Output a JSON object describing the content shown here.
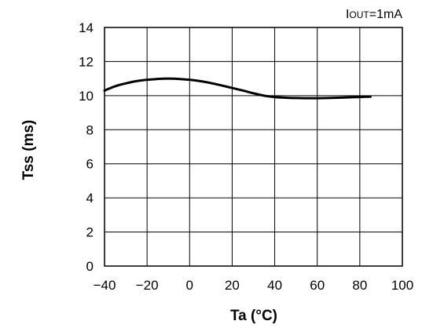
{
  "chart_data": {
    "type": "line",
    "annotation": {
      "main": "I",
      "sub": "OUT",
      "rest": "=1mA"
    },
    "xlabel": "Ta (°C)",
    "ylabel": "Tss (ms)",
    "xlim": [
      -40,
      100
    ],
    "ylim": [
      0,
      14
    ],
    "xticks": [
      -40,
      -20,
      0,
      20,
      40,
      60,
      80,
      100
    ],
    "yticks": [
      0,
      2,
      4,
      6,
      8,
      10,
      12,
      14
    ],
    "xtick_labels": [
      "−40",
      "−20",
      "0",
      "20",
      "40",
      "60",
      "80",
      "100"
    ],
    "ytick_labels": [
      "0",
      "2",
      "4",
      "6",
      "8",
      "10",
      "12",
      "14"
    ],
    "grid": true,
    "series": [
      {
        "x": [
          -40,
          -35,
          -30,
          -25,
          -20,
          -15,
          -10,
          -5,
          0,
          5,
          10,
          15,
          20,
          25,
          30,
          35,
          40,
          45,
          50,
          55,
          60,
          65,
          70,
          75,
          80,
          85
        ],
        "y": [
          10.3,
          10.55,
          10.72,
          10.85,
          10.93,
          10.98,
          11.0,
          10.98,
          10.93,
          10.85,
          10.74,
          10.6,
          10.45,
          10.3,
          10.14,
          10.0,
          9.92,
          9.88,
          9.86,
          9.85,
          9.85,
          9.86,
          9.88,
          9.9,
          9.92,
          9.94
        ]
      }
    ],
    "colors": {
      "line": "#000000",
      "grid": "#000000"
    }
  }
}
